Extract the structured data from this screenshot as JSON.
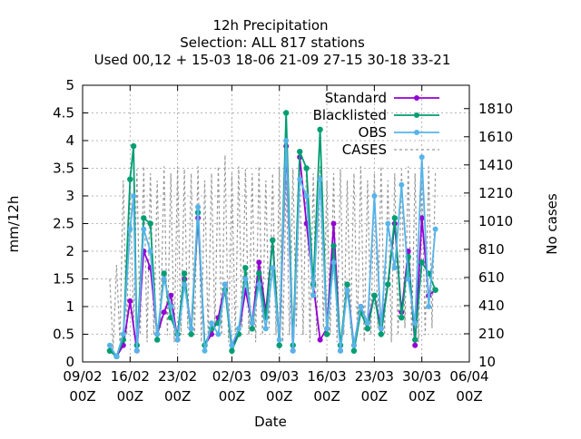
{
  "colors": {
    "standard": "#9400d3",
    "blacklisted": "#009e73",
    "obs": "#56b4e9",
    "cases": "#999999",
    "grid": "#a0a0a0"
  },
  "chart_data": {
    "type": "line",
    "title": "12h Precipitation",
    "subtitle": "Selection: ALL     817 stations",
    "subtitle2": "Used  00,12  + 15-03 18-06 21-09 27-15 30-18 33-21",
    "xlabel": "Date",
    "ylabel": "mm/12h",
    "y2label": "No cases",
    "xlim": [
      "2020-02-09T00",
      "2020-04-06T00"
    ],
    "ylim": [
      0,
      5
    ],
    "y2lim": [
      10,
      1976
    ],
    "grid": true,
    "legend_position": "top-right",
    "x_ticks": [
      {
        "date": "2020-02-09T00",
        "line1": "09/02",
        "line2": "00Z"
      },
      {
        "date": "2020-02-16T00",
        "line1": "16/02",
        "line2": "00Z"
      },
      {
        "date": "2020-02-23T00",
        "line1": "23/02",
        "line2": "00Z"
      },
      {
        "date": "2020-03-02T00",
        "line1": "02/03",
        "line2": "00Z"
      },
      {
        "date": "2020-03-09T00",
        "line1": "09/03",
        "line2": "00Z"
      },
      {
        "date": "2020-03-16T00",
        "line1": "16/03",
        "line2": "00Z"
      },
      {
        "date": "2020-03-23T00",
        "line1": "23/03",
        "line2": "00Z"
      },
      {
        "date": "2020-03-30T00",
        "line1": "30/03",
        "line2": "00Z"
      },
      {
        "date": "2020-04-06T00",
        "line1": "06/04",
        "line2": "00Z"
      }
    ],
    "y_ticks": [
      "0",
      "0.5",
      "1",
      "1.5",
      "2",
      "2.5",
      "3",
      "3.5",
      "4",
      "4.5",
      "5"
    ],
    "y2_ticks": [
      "10",
      "210",
      "410",
      "610",
      "810",
      "1010",
      "1210",
      "1410",
      "1610",
      "1810"
    ],
    "series": [
      {
        "name": "Standard",
        "key": "standard",
        "x": [
          "2020-02-13T00",
          "2020-02-14T00",
          "2020-02-15T00",
          "2020-02-16T00",
          "2020-02-17T00",
          "2020-02-18T00",
          "2020-02-19T00",
          "2020-02-20T00",
          "2020-02-21T00",
          "2020-02-22T00",
          "2020-02-23T00",
          "2020-02-24T00",
          "2020-02-25T00",
          "2020-02-26T00",
          "2020-02-27T00",
          "2020-02-28T00",
          "2020-02-29T00",
          "2020-03-01T00",
          "2020-03-02T00",
          "2020-03-03T00",
          "2020-03-04T00",
          "2020-03-05T00",
          "2020-03-06T00",
          "2020-03-07T00",
          "2020-03-08T00",
          "2020-03-09T00",
          "2020-03-10T00",
          "2020-03-11T00",
          "2020-03-12T00",
          "2020-03-13T00",
          "2020-03-14T00",
          "2020-03-15T00",
          "2020-03-16T00",
          "2020-03-17T00",
          "2020-03-18T00",
          "2020-03-19T00",
          "2020-03-20T00",
          "2020-03-21T00",
          "2020-03-22T00",
          "2020-03-23T00",
          "2020-03-24T00",
          "2020-03-25T00",
          "2020-03-26T00",
          "2020-03-27T00",
          "2020-03-28T00",
          "2020-03-29T00",
          "2020-03-30T00",
          "2020-03-31T00",
          "2020-04-01T00"
        ],
        "values": [
          0.2,
          0.1,
          0.3,
          1.1,
          0.2,
          2.0,
          1.7,
          0.5,
          0.9,
          1.2,
          0.4,
          1.5,
          0.6,
          2.6,
          0.3,
          0.5,
          0.8,
          1.4,
          0.3,
          0.5,
          1.3,
          0.7,
          1.8,
          0.9,
          2.2,
          0.3,
          3.9,
          0.2,
          3.7,
          2.5,
          1.4,
          0.4,
          0.6,
          2.5,
          0.2,
          1.4,
          0.3,
          1.0,
          0.7,
          1.2,
          0.6,
          1.4,
          2.5,
          0.9,
          2.0,
          0.3,
          2.6,
          1.2,
          1.3
        ]
      },
      {
        "name": "Blacklisted",
        "key": "blacklisted",
        "x": [
          "2020-02-13T00",
          "2020-02-14T00",
          "2020-02-15T00",
          "2020-02-16T00",
          "2020-02-16T12",
          "2020-02-17T00",
          "2020-02-18T00",
          "2020-02-19T00",
          "2020-02-20T00",
          "2020-02-21T00",
          "2020-02-22T00",
          "2020-02-23T00",
          "2020-02-24T00",
          "2020-02-25T00",
          "2020-02-26T00",
          "2020-02-27T00",
          "2020-02-28T00",
          "2020-02-29T00",
          "2020-03-01T00",
          "2020-03-02T00",
          "2020-03-03T00",
          "2020-03-04T00",
          "2020-03-05T00",
          "2020-03-06T00",
          "2020-03-07T00",
          "2020-03-08T00",
          "2020-03-09T00",
          "2020-03-10T00",
          "2020-03-11T00",
          "2020-03-12T00",
          "2020-03-13T00",
          "2020-03-14T00",
          "2020-03-15T00",
          "2020-03-16T00",
          "2020-03-17T00",
          "2020-03-18T00",
          "2020-03-19T00",
          "2020-03-20T00",
          "2020-03-21T00",
          "2020-03-22T00",
          "2020-03-23T00",
          "2020-03-24T00",
          "2020-03-25T00",
          "2020-03-26T00",
          "2020-03-27T00",
          "2020-03-28T00",
          "2020-03-29T00",
          "2020-03-30T00",
          "2020-03-31T00",
          "2020-04-01T00"
        ],
        "values": [
          0.2,
          0.1,
          0.4,
          3.3,
          3.9,
          0.3,
          2.6,
          2.5,
          0.4,
          1.6,
          0.8,
          0.5,
          1.6,
          0.5,
          2.7,
          0.3,
          0.6,
          0.7,
          1.3,
          0.2,
          0.5,
          1.7,
          0.6,
          1.6,
          0.8,
          2.2,
          0.3,
          4.5,
          0.3,
          3.8,
          3.5,
          1.4,
          4.2,
          0.5,
          2.1,
          0.3,
          1.4,
          0.2,
          0.9,
          0.6,
          1.2,
          0.5,
          1.4,
          2.6,
          0.8,
          1.9,
          0.4,
          1.8,
          1.6,
          1.3
        ]
      },
      {
        "name": "OBS",
        "key": "obs",
        "x": [
          "2020-02-13T00",
          "2020-02-14T00",
          "2020-02-15T00",
          "2020-02-16T00",
          "2020-02-16T12",
          "2020-02-17T00",
          "2020-02-18T00",
          "2020-02-19T00",
          "2020-02-20T00",
          "2020-02-21T00",
          "2020-02-22T00",
          "2020-02-23T00",
          "2020-02-24T00",
          "2020-02-25T00",
          "2020-02-26T00",
          "2020-02-27T00",
          "2020-02-28T00",
          "2020-02-29T00",
          "2020-03-01T00",
          "2020-03-02T00",
          "2020-03-03T00",
          "2020-03-04T00",
          "2020-03-05T00",
          "2020-03-06T00",
          "2020-03-07T00",
          "2020-03-08T00",
          "2020-03-09T00",
          "2020-03-10T00",
          "2020-03-11T00",
          "2020-03-12T00",
          "2020-03-13T00",
          "2020-03-14T00",
          "2020-03-15T00",
          "2020-03-16T00",
          "2020-03-17T00",
          "2020-03-18T00",
          "2020-03-19T00",
          "2020-03-20T00",
          "2020-03-21T00",
          "2020-03-22T00",
          "2020-03-23T00",
          "2020-03-24T00",
          "2020-03-25T00",
          "2020-03-26T00",
          "2020-03-27T00",
          "2020-03-28T00",
          "2020-03-29T00",
          "2020-03-30T00",
          "2020-03-31T00",
          "2020-04-01T00"
        ],
        "values": [
          0.3,
          0.1,
          0.5,
          2.4,
          3.0,
          0.2,
          2.4,
          2.0,
          0.5,
          1.5,
          1.0,
          0.4,
          1.4,
          0.6,
          2.8,
          0.2,
          0.7,
          0.5,
          1.4,
          0.3,
          0.6,
          1.5,
          0.7,
          1.4,
          0.6,
          1.7,
          0.4,
          4.0,
          0.2,
          3.3,
          3.0,
          1.2,
          3.3,
          0.6,
          1.8,
          0.2,
          1.3,
          0.3,
          1.0,
          0.7,
          3.0,
          0.6,
          2.5,
          1.7,
          3.2,
          1.5,
          0.7,
          3.7,
          1.0,
          2.4
        ]
      },
      {
        "name": "CASES",
        "key": "cases",
        "axis": "y2",
        "x": [
          "2020-02-13T00",
          "2020-02-13T12",
          "2020-02-14T00",
          "2020-02-14T12",
          "2020-02-15T00",
          "2020-02-15T12",
          "2020-02-16T00",
          "2020-02-16T12",
          "2020-02-17T00",
          "2020-02-17T12",
          "2020-02-18T00",
          "2020-02-18T12",
          "2020-02-19T00",
          "2020-02-19T12",
          "2020-02-20T00",
          "2020-02-20T12",
          "2020-02-21T00",
          "2020-02-21T12",
          "2020-02-22T00",
          "2020-02-22T12",
          "2020-02-23T00",
          "2020-02-23T12",
          "2020-02-24T00",
          "2020-02-24T12",
          "2020-02-25T00",
          "2020-02-25T12",
          "2020-02-26T00",
          "2020-02-26T12",
          "2020-02-27T00",
          "2020-02-27T12",
          "2020-02-28T00",
          "2020-02-28T12",
          "2020-02-29T00",
          "2020-02-29T12",
          "2020-03-01T00",
          "2020-03-01T12",
          "2020-03-02T00",
          "2020-03-02T12",
          "2020-03-03T00",
          "2020-03-03T12",
          "2020-03-04T00",
          "2020-03-04T12",
          "2020-03-05T00",
          "2020-03-05T12",
          "2020-03-06T00",
          "2020-03-06T12",
          "2020-03-07T00",
          "2020-03-07T12",
          "2020-03-08T00",
          "2020-03-08T12",
          "2020-03-09T00",
          "2020-03-09T12",
          "2020-03-10T00",
          "2020-03-10T12",
          "2020-03-11T00",
          "2020-03-11T12",
          "2020-03-12T00",
          "2020-03-12T12",
          "2020-03-13T00",
          "2020-03-13T12",
          "2020-03-14T00",
          "2020-03-14T12",
          "2020-03-15T00",
          "2020-03-15T12",
          "2020-03-16T00",
          "2020-03-16T12",
          "2020-03-17T00",
          "2020-03-17T12",
          "2020-03-18T00",
          "2020-03-18T12",
          "2020-03-19T00",
          "2020-03-19T12",
          "2020-03-20T00",
          "2020-03-20T12",
          "2020-03-21T00",
          "2020-03-21T12",
          "2020-03-22T00",
          "2020-03-22T12",
          "2020-03-23T00",
          "2020-03-23T12",
          "2020-03-24T00",
          "2020-03-24T12",
          "2020-03-25T00",
          "2020-03-25T12",
          "2020-03-26T00",
          "2020-03-26T12",
          "2020-03-27T00",
          "2020-03-27T12",
          "2020-03-28T00",
          "2020-03-28T12",
          "2020-03-29T00",
          "2020-03-29T12",
          "2020-03-30T00",
          "2020-03-30T12",
          "2020-03-31T00",
          "2020-03-31T12",
          "2020-04-01T00"
        ],
        "values": [
          600,
          100,
          700,
          150,
          1300,
          200,
          1350,
          250,
          1380,
          200,
          1400,
          150,
          1350,
          200,
          1300,
          250,
          1400,
          200,
          1350,
          150,
          1400,
          200,
          1380,
          250,
          1350,
          200,
          1400,
          150,
          1300,
          200,
          1350,
          250,
          1400,
          200,
          1480,
          150,
          1350,
          200,
          1400,
          250,
          1380,
          200,
          1350,
          150,
          1400,
          200,
          1300,
          250,
          1350,
          200,
          1400,
          150,
          1300,
          200,
          1380,
          250,
          1350,
          200,
          1400,
          150,
          1350,
          200,
          1400,
          250,
          1300,
          200,
          1350,
          150,
          1380,
          200,
          1300,
          250,
          1350,
          200,
          1400,
          150,
          1300,
          200,
          1350,
          250,
          1400,
          200,
          1300,
          150,
          1350,
          200,
          1380,
          250,
          1400,
          200,
          1350,
          150,
          1300,
          200,
          1400,
          250,
          1350
        ]
      }
    ]
  }
}
